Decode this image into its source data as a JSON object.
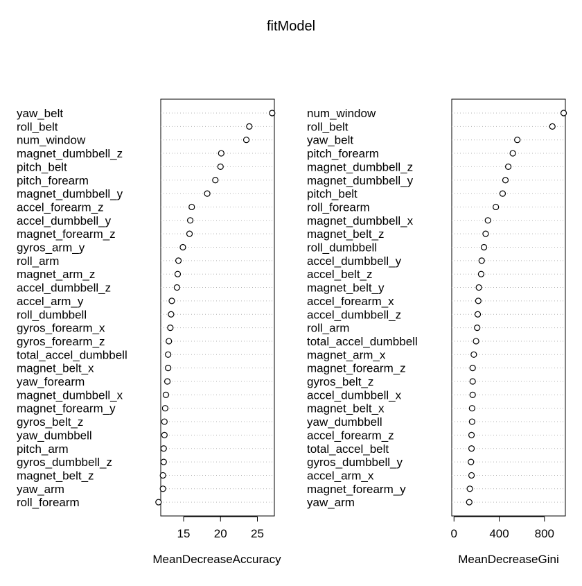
{
  "title": "fitModel",
  "chart_data": [
    {
      "type": "scatter",
      "xlabel": "MeanDecreaseAccuracy",
      "xticks": [
        15,
        20,
        25
      ],
      "xlim": [
        11.9,
        27.3
      ],
      "point_style": "open circle",
      "grid": "dotted horizontal lines",
      "categories": [
        "yaw_belt",
        "roll_belt",
        "num_window",
        "magnet_dumbbell_z",
        "pitch_belt",
        "pitch_forearm",
        "magnet_dumbbell_y",
        "accel_forearm_z",
        "accel_dumbbell_y",
        "magnet_forearm_z",
        "gyros_arm_y",
        "roll_arm",
        "magnet_arm_z",
        "accel_dumbbell_z",
        "accel_arm_y",
        "roll_dumbbell",
        "gyros_forearm_x",
        "gyros_forearm_z",
        "total_accel_dumbbell",
        "magnet_belt_x",
        "yaw_forearm",
        "magnet_dumbbell_x",
        "magnet_forearm_y",
        "gyros_belt_z",
        "yaw_dumbbell",
        "pitch_arm",
        "gyros_dumbbell_z",
        "magnet_belt_z",
        "yaw_arm",
        "roll_forearm"
      ],
      "values": [
        27.0,
        23.9,
        23.5,
        20.1,
        20.0,
        19.3,
        18.2,
        16.1,
        15.9,
        15.8,
        14.9,
        14.3,
        14.2,
        14.1,
        13.4,
        13.3,
        13.2,
        13.0,
        12.9,
        12.9,
        12.8,
        12.6,
        12.5,
        12.4,
        12.4,
        12.3,
        12.3,
        12.2,
        12.2,
        11.6
      ]
    },
    {
      "type": "scatter",
      "xlabel": "MeanDecreaseGini",
      "xticks": [
        0,
        400,
        800
      ],
      "xlim": [
        -20,
        985
      ],
      "point_style": "open circle",
      "grid": "dotted horizontal lines",
      "categories": [
        "num_window",
        "roll_belt",
        "yaw_belt",
        "pitch_forearm",
        "magnet_dumbbell_z",
        "magnet_dumbbell_y",
        "pitch_belt",
        "roll_forearm",
        "magnet_dumbbell_x",
        "magnet_belt_z",
        "roll_dumbbell",
        "accel_dumbbell_y",
        "accel_belt_z",
        "magnet_belt_y",
        "accel_forearm_x",
        "accel_dumbbell_z",
        "roll_arm",
        "total_accel_dumbbell",
        "magnet_arm_x",
        "magnet_forearm_z",
        "gyros_belt_z",
        "accel_dumbbell_x",
        "magnet_belt_x",
        "yaw_dumbbell",
        "accel_forearm_z",
        "total_accel_belt",
        "gyros_dumbbell_y",
        "accel_arm_x",
        "magnet_forearm_y",
        "yaw_arm"
      ],
      "values": [
        970,
        870,
        560,
        520,
        480,
        455,
        430,
        370,
        300,
        280,
        265,
        245,
        240,
        220,
        215,
        210,
        205,
        195,
        175,
        165,
        165,
        165,
        160,
        160,
        155,
        155,
        150,
        155,
        140,
        135
      ]
    }
  ]
}
